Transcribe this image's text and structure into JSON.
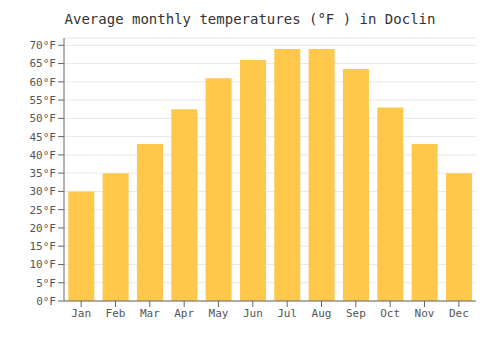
{
  "chart_data": {
    "type": "bar",
    "title": "Average monthly temperatures (°F ) in Doclin",
    "categories": [
      "Jan",
      "Feb",
      "Mar",
      "Apr",
      "May",
      "Jun",
      "Jul",
      "Aug",
      "Sep",
      "Oct",
      "Nov",
      "Dec"
    ],
    "values": [
      30,
      35,
      43,
      52.5,
      61,
      66,
      69,
      69,
      63.5,
      53,
      43,
      35
    ],
    "color": "#FFC84A",
    "ylim": [
      0,
      72
    ],
    "yticks": [
      {
        "value": 0,
        "label": "0°F"
      },
      {
        "value": 5,
        "label": "5°F"
      },
      {
        "value": 10,
        "label": "10°F"
      },
      {
        "value": 15,
        "label": "15°F"
      },
      {
        "value": 20,
        "label": "20°F"
      },
      {
        "value": 25,
        "label": "25°F"
      },
      {
        "value": 30,
        "label": "30°F"
      },
      {
        "value": 35,
        "label": "35°F"
      },
      {
        "value": 40,
        "label": "40°F"
      },
      {
        "value": 45,
        "label": "45°F"
      },
      {
        "value": 50,
        "label": "50°F"
      },
      {
        "value": 55,
        "label": "55°F"
      },
      {
        "value": 60,
        "label": "60°F"
      },
      {
        "value": 65,
        "label": "65°F"
      },
      {
        "value": 70,
        "label": "70°F"
      }
    ],
    "grid": true
  }
}
